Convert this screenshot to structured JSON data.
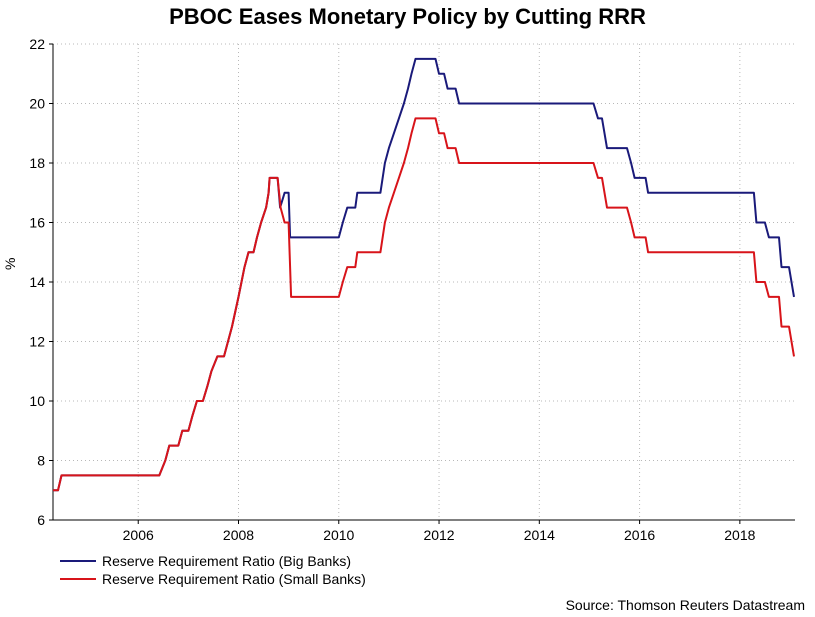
{
  "chart_data": {
    "type": "line",
    "title": "PBOC Eases Monetary Policy by Cutting RRR",
    "xlabel": "",
    "ylabel": "%",
    "xlim": [
      2004.3,
      2019.1
    ],
    "ylim": [
      6,
      22
    ],
    "x_ticks": [
      2006,
      2008,
      2010,
      2012,
      2014,
      2016,
      2018
    ],
    "y_ticks": [
      6,
      8,
      10,
      12,
      14,
      16,
      18,
      20,
      22
    ],
    "grid": true,
    "legend_position": "bottom-left",
    "source": "Source: Thomson Reuters Datastream",
    "series": [
      {
        "name": "Reserve Requirement Ratio (Big Banks)",
        "color": "#1a1a7a",
        "points": [
          [
            2004.3,
            7.0
          ],
          [
            2004.4,
            7.0
          ],
          [
            2004.47,
            7.5
          ],
          [
            2006.42,
            7.5
          ],
          [
            2006.54,
            8.0
          ],
          [
            2006.62,
            8.5
          ],
          [
            2006.8,
            8.5
          ],
          [
            2006.88,
            9.0
          ],
          [
            2007.0,
            9.0
          ],
          [
            2007.08,
            9.5
          ],
          [
            2007.17,
            10.0
          ],
          [
            2007.29,
            10.0
          ],
          [
            2007.38,
            10.5
          ],
          [
            2007.46,
            11.0
          ],
          [
            2007.58,
            11.5
          ],
          [
            2007.71,
            11.5
          ],
          [
            2007.79,
            12.0
          ],
          [
            2007.87,
            12.5
          ],
          [
            2008.0,
            13.5
          ],
          [
            2008.12,
            14.5
          ],
          [
            2008.2,
            15.0
          ],
          [
            2008.3,
            15.0
          ],
          [
            2008.37,
            15.5
          ],
          [
            2008.45,
            16.0
          ],
          [
            2008.55,
            16.5
          ],
          [
            2008.6,
            17.0
          ],
          [
            2008.62,
            17.5
          ],
          [
            2008.78,
            17.5
          ],
          [
            2008.83,
            16.5
          ],
          [
            2008.92,
            17.0
          ],
          [
            2009.0,
            17.0
          ],
          [
            2009.03,
            15.5
          ],
          [
            2010.0,
            15.5
          ],
          [
            2010.08,
            16.0
          ],
          [
            2010.17,
            16.5
          ],
          [
            2010.33,
            16.5
          ],
          [
            2010.37,
            17.0
          ],
          [
            2010.83,
            17.0
          ],
          [
            2010.92,
            18.0
          ],
          [
            2011.0,
            18.5
          ],
          [
            2011.1,
            19.0
          ],
          [
            2011.2,
            19.5
          ],
          [
            2011.3,
            20.0
          ],
          [
            2011.38,
            20.5
          ],
          [
            2011.45,
            21.0
          ],
          [
            2011.53,
            21.5
          ],
          [
            2011.93,
            21.5
          ],
          [
            2012.0,
            21.0
          ],
          [
            2012.1,
            21.0
          ],
          [
            2012.17,
            20.5
          ],
          [
            2012.33,
            20.5
          ],
          [
            2012.4,
            20.0
          ],
          [
            2015.08,
            20.0
          ],
          [
            2015.17,
            19.5
          ],
          [
            2015.25,
            19.5
          ],
          [
            2015.35,
            18.5
          ],
          [
            2015.75,
            18.5
          ],
          [
            2015.83,
            18.0
          ],
          [
            2015.9,
            17.5
          ],
          [
            2016.12,
            17.5
          ],
          [
            2016.17,
            17.0
          ],
          [
            2018.28,
            17.0
          ],
          [
            2018.33,
            16.0
          ],
          [
            2018.5,
            16.0
          ],
          [
            2018.58,
            15.5
          ],
          [
            2018.78,
            15.5
          ],
          [
            2018.83,
            14.5
          ],
          [
            2018.98,
            14.5
          ],
          [
            2019.08,
            13.5
          ]
        ]
      },
      {
        "name": "Reserve Requirement Ratio (Small Banks)",
        "color": "#d8141a",
        "points": [
          [
            2004.3,
            7.0
          ],
          [
            2004.4,
            7.0
          ],
          [
            2004.47,
            7.5
          ],
          [
            2006.42,
            7.5
          ],
          [
            2006.54,
            8.0
          ],
          [
            2006.62,
            8.5
          ],
          [
            2006.8,
            8.5
          ],
          [
            2006.88,
            9.0
          ],
          [
            2007.0,
            9.0
          ],
          [
            2007.08,
            9.5
          ],
          [
            2007.17,
            10.0
          ],
          [
            2007.29,
            10.0
          ],
          [
            2007.38,
            10.5
          ],
          [
            2007.46,
            11.0
          ],
          [
            2007.58,
            11.5
          ],
          [
            2007.71,
            11.5
          ],
          [
            2007.79,
            12.0
          ],
          [
            2007.87,
            12.5
          ],
          [
            2008.0,
            13.5
          ],
          [
            2008.12,
            14.5
          ],
          [
            2008.2,
            15.0
          ],
          [
            2008.3,
            15.0
          ],
          [
            2008.37,
            15.5
          ],
          [
            2008.45,
            16.0
          ],
          [
            2008.55,
            16.5
          ],
          [
            2008.6,
            17.0
          ],
          [
            2008.62,
            17.5
          ],
          [
            2008.78,
            17.5
          ],
          [
            2008.84,
            16.5
          ],
          [
            2008.92,
            16.0
          ],
          [
            2009.0,
            16.0
          ],
          [
            2009.05,
            13.5
          ],
          [
            2010.0,
            13.5
          ],
          [
            2010.08,
            14.0
          ],
          [
            2010.17,
            14.5
          ],
          [
            2010.33,
            14.5
          ],
          [
            2010.37,
            15.0
          ],
          [
            2010.83,
            15.0
          ],
          [
            2010.92,
            16.0
          ],
          [
            2011.0,
            16.5
          ],
          [
            2011.1,
            17.0
          ],
          [
            2011.2,
            17.5
          ],
          [
            2011.3,
            18.0
          ],
          [
            2011.38,
            18.5
          ],
          [
            2011.45,
            19.0
          ],
          [
            2011.53,
            19.5
          ],
          [
            2011.93,
            19.5
          ],
          [
            2012.0,
            19.0
          ],
          [
            2012.1,
            19.0
          ],
          [
            2012.17,
            18.5
          ],
          [
            2012.33,
            18.5
          ],
          [
            2012.4,
            18.0
          ],
          [
            2015.08,
            18.0
          ],
          [
            2015.17,
            17.5
          ],
          [
            2015.25,
            17.5
          ],
          [
            2015.35,
            16.5
          ],
          [
            2015.75,
            16.5
          ],
          [
            2015.83,
            16.0
          ],
          [
            2015.9,
            15.5
          ],
          [
            2016.12,
            15.5
          ],
          [
            2016.17,
            15.0
          ],
          [
            2018.28,
            15.0
          ],
          [
            2018.33,
            14.0
          ],
          [
            2018.5,
            14.0
          ],
          [
            2018.58,
            13.5
          ],
          [
            2018.78,
            13.5
          ],
          [
            2018.83,
            12.5
          ],
          [
            2018.98,
            12.5
          ],
          [
            2019.08,
            11.5
          ]
        ]
      }
    ]
  }
}
